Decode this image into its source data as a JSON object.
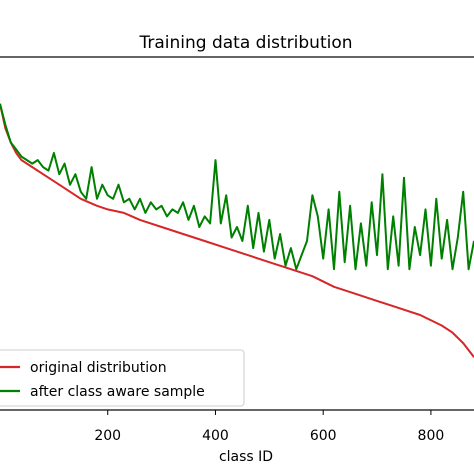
{
  "chart_data": {
    "type": "line",
    "title": "Training data distribution",
    "xlabel": "class ID",
    "ylabel": "",
    "xlim": [
      0,
      880
    ],
    "ylim": [
      0,
      100
    ],
    "x_ticks": [
      200,
      400,
      600,
      800
    ],
    "x_tick_labels": [
      "200",
      "400",
      "600",
      "800"
    ],
    "legend_position": "lower-left",
    "series": [
      {
        "name": "original distribution",
        "color": "#d62728",
        "x": [
          0,
          10,
          20,
          30,
          40,
          60,
          80,
          100,
          120,
          150,
          180,
          200,
          230,
          260,
          300,
          340,
          380,
          420,
          460,
          500,
          540,
          580,
          620,
          660,
          700,
          740,
          780,
          820,
          840,
          860,
          880
        ],
        "y": [
          87,
          80,
          76,
          73,
          71,
          69,
          67,
          65,
          63,
          60,
          58,
          57,
          56,
          54,
          52,
          50,
          48,
          46,
          44,
          42,
          40,
          38,
          35,
          33,
          31,
          29,
          27,
          24,
          22,
          19,
          15
        ]
      },
      {
        "name": "after class aware sample",
        "color": "#008000",
        "x": [
          0,
          10,
          20,
          30,
          40,
          50,
          60,
          70,
          80,
          90,
          100,
          110,
          120,
          130,
          140,
          150,
          160,
          170,
          180,
          190,
          200,
          210,
          220,
          230,
          240,
          250,
          260,
          270,
          280,
          290,
          300,
          310,
          320,
          330,
          340,
          350,
          360,
          370,
          380,
          390,
          400,
          410,
          420,
          430,
          440,
          450,
          460,
          470,
          480,
          490,
          500,
          510,
          520,
          530,
          540,
          550,
          560,
          570,
          580,
          590,
          600,
          610,
          620,
          630,
          640,
          650,
          660,
          670,
          680,
          690,
          700,
          710,
          720,
          730,
          740,
          750,
          760,
          770,
          780,
          790,
          800,
          810,
          820,
          830,
          840,
          850,
          860,
          870,
          880
        ],
        "y": [
          87,
          81,
          76,
          74,
          72,
          71,
          70,
          71,
          69,
          68,
          73,
          67,
          70,
          64,
          67,
          62,
          60,
          69,
          60,
          64,
          61,
          60,
          64,
          59,
          60,
          57,
          60,
          56,
          59,
          57,
          58,
          55,
          57,
          56,
          59,
          54,
          58,
          52,
          55,
          53,
          71,
          53,
          61,
          49,
          52,
          48,
          58,
          46,
          56,
          45,
          54,
          43,
          50,
          41,
          46,
          40,
          44,
          48,
          61,
          55,
          43,
          57,
          40,
          62,
          42,
          58,
          40,
          53,
          41,
          59,
          44,
          67,
          40,
          55,
          41,
          66,
          40,
          52,
          44,
          57,
          41,
          60,
          43,
          54,
          40,
          49,
          62,
          40,
          48
        ]
      }
    ]
  }
}
